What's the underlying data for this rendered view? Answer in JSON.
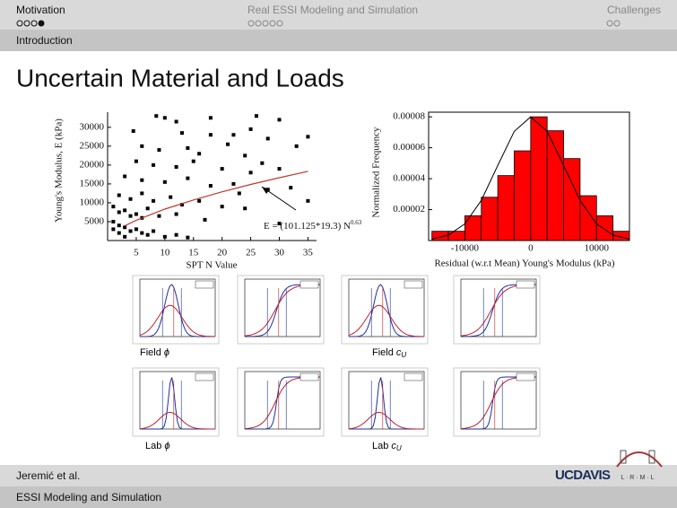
{
  "header": {
    "sections": [
      "Motivation",
      "Real ESSI Modeling and Simulation",
      "Challenges"
    ],
    "subsection": "Introduction"
  },
  "title": "Uncertain Material and Loads",
  "chart_data": [
    {
      "type": "scatter",
      "xlabel": "SPT N Value",
      "ylabel": "Young's Modulus, E (kPa)",
      "annotation": "E = (101.125*19.3) N",
      "annotation_exponent": "0.63",
      "color": "#000000",
      "x": [
        8.5,
        10,
        12,
        18,
        26,
        30,
        4.5,
        13,
        18,
        22,
        25,
        35,
        28,
        6,
        9,
        14,
        16,
        21,
        24,
        33,
        5,
        8,
        12,
        15,
        20,
        27,
        30,
        25,
        3,
        6,
        10,
        14,
        18,
        22,
        28,
        32,
        23,
        2,
        4,
        6,
        8,
        11,
        13,
        16,
        20,
        35,
        24,
        1,
        2,
        3,
        4,
        5,
        6,
        7,
        9,
        12,
        17,
        30,
        1,
        2,
        3,
        4,
        5,
        6,
        7,
        8,
        10,
        12,
        14,
        3,
        2,
        1
      ],
      "values": [
        33000,
        32500,
        31500,
        32500,
        33000,
        32000,
        29000,
        28500,
        28000,
        28000,
        29500,
        27500,
        27000,
        25000,
        24000,
        24500,
        23000,
        25500,
        22500,
        25000,
        21000,
        20000,
        19500,
        21000,
        19000,
        20500,
        19000,
        18000,
        17000,
        16000,
        15500,
        16500,
        14500,
        15000,
        13500,
        14000,
        12500,
        12000,
        11000,
        12500,
        10500,
        11500,
        9500,
        10500,
        9000,
        10500,
        8500,
        9000,
        7500,
        8000,
        6500,
        7000,
        6000,
        8500,
        6500,
        7000,
        5500,
        4500,
        5000,
        4000,
        3500,
        2500,
        3000,
        2000,
        1500,
        2500,
        1000,
        1500,
        800,
        1000,
        2000,
        3000
      ],
      "trend": {
        "color": "#c0392b",
        "x": [
          3,
          5,
          10,
          15,
          20,
          25,
          30,
          35
        ],
        "values": [
          3900,
          5380,
          8330,
          10750,
          12900,
          14860,
          16640,
          18330
        ]
      },
      "xlim": [
        0,
        36.5
      ],
      "ylim": [
        0,
        34000
      ],
      "xticks": [
        5,
        10,
        15,
        20,
        25,
        30,
        35
      ],
      "yticks": [
        5000,
        10000,
        15000,
        20000,
        25000,
        30000
      ]
    },
    {
      "type": "histogram",
      "xlabel": "Residual (w.r.t Mean) Young's Modulus (kPa)",
      "ylabel": "Normalized Frequency",
      "color": "#ff0000",
      "bins": [
        -15000,
        -12500,
        -10000,
        -7500,
        -5000,
        -2500,
        0,
        2500,
        5000,
        7500,
        10000,
        12500,
        15000
      ],
      "values": [
        6e-06,
        6e-06,
        1.6e-05,
        2.8e-05,
        4.2e-05,
        5.8e-05,
        8e-05,
        7.1e-05,
        5.3e-05,
        2.9e-05,
        1.6e-05,
        6e-06
      ],
      "fit": {
        "color": "#000000",
        "x": [
          -15000,
          -12500,
          -10000,
          -7500,
          -5000,
          -2500,
          0,
          2500,
          5000,
          7500,
          10000,
          12500,
          15000
        ],
        "values": [
          9e-07,
          3.5e-06,
          1.08e-05,
          2.6e-05,
          4.85e-05,
          7.06e-05,
          8e-05,
          7.06e-05,
          4.85e-05,
          2.6e-05,
          1.08e-05,
          3.5e-06,
          9e-07
        ]
      },
      "xlim": [
        -15500,
        15000
      ],
      "ylim": [
        0,
        8.3e-05
      ],
      "xticks": [
        -10000,
        0,
        10000
      ],
      "yticks": [
        2e-05,
        4e-05,
        6e-05,
        8e-05
      ]
    }
  ],
  "captions": [
    {
      "text": "Field",
      "symbol": "ϕ"
    },
    {
      "text": "Field",
      "symbol": "c",
      "sub": "U"
    },
    {
      "text": "Lab",
      "symbol": "ϕ"
    },
    {
      "text": "Lab",
      "symbol": "c",
      "sub": "U"
    }
  ],
  "footer": {
    "author": "Jeremić et al.",
    "talk": "ESSI Modeling and Simulation",
    "logo": "UCDAVIS",
    "lab_logo": "L · R · M · L"
  }
}
